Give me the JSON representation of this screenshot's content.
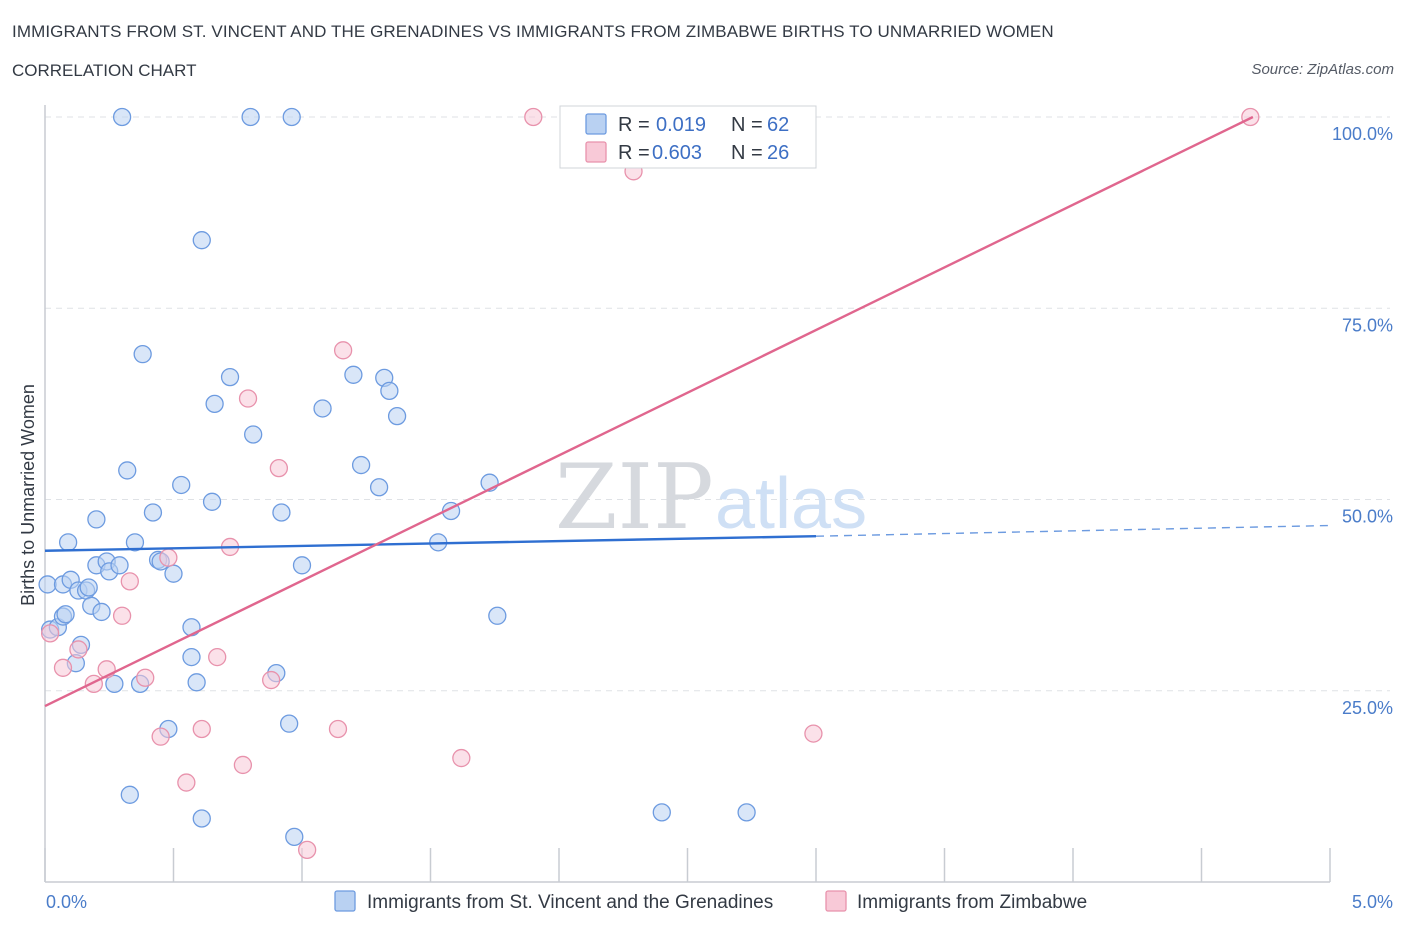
{
  "title": "IMMIGRANTS FROM ST. VINCENT AND THE GRENADINES VS IMMIGRANTS FROM ZIMBABWE BIRTHS TO UNMARRIED WOMEN",
  "subtitle": "CORRELATION CHART",
  "source": "Source: ZipAtlas.com",
  "watermark": {
    "zip": "ZIP",
    "atlas": "atlas"
  },
  "legend": {
    "r_label": "R =",
    "n_label": "N =",
    "rows": [
      {
        "r": "0.019",
        "n": "62"
      },
      {
        "r": "0.603",
        "n": "26"
      }
    ]
  },
  "chart_data": {
    "type": "scatter",
    "xlabel": "",
    "ylabel": "Births to Unmarried Women",
    "xlim": [
      0,
      5
    ],
    "ylim": [
      0,
      100
    ],
    "x_tick_labels": [
      "0.0%",
      "5.0%"
    ],
    "y_tick_labels": [
      "25.0%",
      "50.0%",
      "75.0%",
      "100.0%"
    ],
    "y_ticks": [
      25,
      50,
      75,
      100
    ],
    "grid": "horizontal dashed",
    "legend_position": "top-center",
    "series": [
      {
        "name": "Immigrants from St. Vincent and the Grenadines",
        "color": "#6d9be0",
        "fill": "#b9d1f2",
        "r": 0.019,
        "n": 62,
        "trend": {
          "x0": 0.0,
          "y0": 43.3,
          "x1": 3.0,
          "y1": 45.2,
          "dash_to_x": 5.0,
          "dash_to_y": 46.6
        },
        "points": [
          [
            0.01,
            38.9
          ],
          [
            0.02,
            33.0
          ],
          [
            0.05,
            33.3
          ],
          [
            0.07,
            38.9
          ],
          [
            0.07,
            34.7
          ],
          [
            0.08,
            35.0
          ],
          [
            0.09,
            44.4
          ],
          [
            0.1,
            39.5
          ],
          [
            0.12,
            28.6
          ],
          [
            0.13,
            38.1
          ],
          [
            0.14,
            31.0
          ],
          [
            0.16,
            38.1
          ],
          [
            0.17,
            38.5
          ],
          [
            0.18,
            36.1
          ],
          [
            0.2,
            47.4
          ],
          [
            0.2,
            41.4
          ],
          [
            0.22,
            35.3
          ],
          [
            0.24,
            41.9
          ],
          [
            0.25,
            40.6
          ],
          [
            0.27,
            25.9
          ],
          [
            0.3,
            100.0
          ],
          [
            0.29,
            41.4
          ],
          [
            0.32,
            53.8
          ],
          [
            0.33,
            11.4
          ],
          [
            0.35,
            44.4
          ],
          [
            0.37,
            25.9
          ],
          [
            0.38,
            69.0
          ],
          [
            0.42,
            48.3
          ],
          [
            0.44,
            42.1
          ],
          [
            0.45,
            41.9
          ],
          [
            0.48,
            20.0
          ],
          [
            0.5,
            40.3
          ],
          [
            0.53,
            51.9
          ],
          [
            0.57,
            33.3
          ],
          [
            0.57,
            29.4
          ],
          [
            0.59,
            26.1
          ],
          [
            0.61,
            8.3
          ],
          [
            0.61,
            83.9
          ],
          [
            0.65,
            49.7
          ],
          [
            0.66,
            62.5
          ],
          [
            0.72,
            66.0
          ],
          [
            0.8,
            100.0
          ],
          [
            0.81,
            58.5
          ],
          [
            0.9,
            27.3
          ],
          [
            0.92,
            48.3
          ],
          [
            0.95,
            20.7
          ],
          [
            0.96,
            100.0
          ],
          [
            0.97,
            5.9
          ],
          [
            1.0,
            41.4
          ],
          [
            1.08,
            61.9
          ],
          [
            1.2,
            66.3
          ],
          [
            1.23,
            54.5
          ],
          [
            1.3,
            51.6
          ],
          [
            1.32,
            65.9
          ],
          [
            1.34,
            64.2
          ],
          [
            1.37,
            60.9
          ],
          [
            1.53,
            44.4
          ],
          [
            1.58,
            48.5
          ],
          [
            1.73,
            52.2
          ],
          [
            1.76,
            34.8
          ],
          [
            2.4,
            9.1
          ],
          [
            2.73,
            9.1
          ]
        ]
      },
      {
        "name": "Immigrants from Zimbabwe",
        "color": "#e892ac",
        "fill": "#f8c9d7",
        "r": 0.603,
        "n": 26,
        "trend": {
          "x0": 0.0,
          "y0": 23.0,
          "x1": 4.7,
          "y1": 100.0
        },
        "points": [
          [
            0.02,
            32.5
          ],
          [
            0.07,
            28.0
          ],
          [
            0.13,
            30.4
          ],
          [
            0.19,
            25.9
          ],
          [
            0.24,
            27.8
          ],
          [
            0.3,
            34.8
          ],
          [
            0.33,
            39.3
          ],
          [
            0.39,
            26.7
          ],
          [
            0.45,
            19.0
          ],
          [
            0.48,
            42.4
          ],
          [
            0.55,
            13.0
          ],
          [
            0.61,
            20.0
          ],
          [
            0.67,
            29.4
          ],
          [
            0.72,
            43.8
          ],
          [
            0.77,
            15.3
          ],
          [
            0.79,
            63.2
          ],
          [
            0.88,
            26.4
          ],
          [
            0.91,
            54.1
          ],
          [
            1.02,
            4.2
          ],
          [
            1.14,
            20.0
          ],
          [
            1.16,
            69.5
          ],
          [
            1.62,
            16.2
          ],
          [
            1.9,
            100.0
          ],
          [
            2.29,
            92.9
          ],
          [
            2.99,
            19.4
          ],
          [
            4.69,
            100.0
          ]
        ]
      }
    ]
  }
}
